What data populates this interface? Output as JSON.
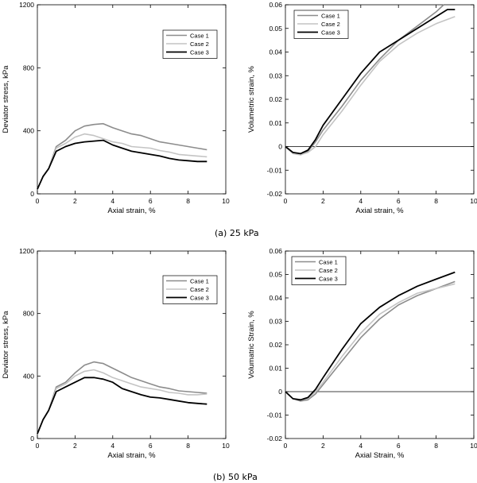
{
  "captions": {
    "a": "(a)  25 kPa",
    "b": "(b)  50 kPa"
  },
  "colors": {
    "case1": "#8c8c8c",
    "case2": "#c4c4c4",
    "case3": "#000000"
  },
  "chart_data": [
    {
      "id": "a-deviator",
      "type": "line",
      "xlabel": "Axial strain, %",
      "ylabel": "Deviator stress, kPa",
      "xlim": [
        0,
        10
      ],
      "ylim": [
        0,
        1200
      ],
      "xticks": [
        0,
        2,
        4,
        6,
        8,
        10
      ],
      "yticks": [
        0,
        400,
        800,
        1200
      ],
      "yticklabels": [
        "0",
        "400",
        "800",
        "1200"
      ],
      "legend": "top-right",
      "series": [
        {
          "name": "Case 1",
          "points": [
            [
              0,
              30
            ],
            [
              0.3,
              110
            ],
            [
              0.6,
              160
            ],
            [
              1.0,
              300
            ],
            [
              1.5,
              340
            ],
            [
              2.0,
              400
            ],
            [
              2.5,
              430
            ],
            [
              3.0,
              440
            ],
            [
              3.5,
              445
            ],
            [
              4.0,
              420
            ],
            [
              4.5,
              400
            ],
            [
              5.0,
              380
            ],
            [
              5.5,
              370
            ],
            [
              6.0,
              350
            ],
            [
              6.5,
              330
            ],
            [
              7.0,
              320
            ],
            [
              7.5,
              310
            ],
            [
              8.0,
              300
            ],
            [
              8.5,
              290
            ],
            [
              9.0,
              280
            ]
          ]
        },
        {
          "name": "Case 2",
          "points": [
            [
              0,
              30
            ],
            [
              0.3,
              110
            ],
            [
              0.6,
              160
            ],
            [
              1.0,
              290
            ],
            [
              1.5,
              320
            ],
            [
              2.0,
              360
            ],
            [
              2.5,
              380
            ],
            [
              3.0,
              370
            ],
            [
              3.5,
              350
            ],
            [
              4.0,
              330
            ],
            [
              4.5,
              320
            ],
            [
              5.0,
              300
            ],
            [
              5.5,
              295
            ],
            [
              6.0,
              290
            ],
            [
              6.5,
              275
            ],
            [
              7.0,
              265
            ],
            [
              7.5,
              250
            ],
            [
              8.0,
              245
            ],
            [
              8.5,
              240
            ],
            [
              9.0,
              235
            ]
          ]
        },
        {
          "name": "Case 3",
          "points": [
            [
              0,
              30
            ],
            [
              0.3,
              110
            ],
            [
              0.6,
              160
            ],
            [
              1.0,
              270
            ],
            [
              1.5,
              300
            ],
            [
              2.0,
              320
            ],
            [
              2.5,
              330
            ],
            [
              3.0,
              335
            ],
            [
              3.5,
              340
            ],
            [
              4.0,
              310
            ],
            [
              4.5,
              290
            ],
            [
              5.0,
              270
            ],
            [
              5.5,
              260
            ],
            [
              6.0,
              250
            ],
            [
              6.5,
              240
            ],
            [
              7.0,
              225
            ],
            [
              7.5,
              215
            ],
            [
              8.0,
              210
            ],
            [
              8.5,
              205
            ],
            [
              9.0,
              205
            ]
          ]
        }
      ]
    },
    {
      "id": "a-volumetric",
      "type": "line",
      "xlabel": "Axial strain, %",
      "ylabel": "Volumetric strain, %",
      "xlim": [
        0,
        10
      ],
      "ylim": [
        -0.02,
        0.06
      ],
      "xticks": [
        0,
        2,
        4,
        6,
        8,
        10
      ],
      "yticks": [
        -0.02,
        -0.01,
        0,
        0.01,
        0.02,
        0.03,
        0.04,
        0.05,
        0.06
      ],
      "yticklabels": [
        "-0.02",
        "-0.01",
        "0",
        "0.01",
        "0.02",
        "0.03",
        "0.04",
        "0.05",
        "0.06"
      ],
      "legend": "top-left",
      "zero_line": true,
      "series": [
        {
          "name": "Case 1",
          "points": [
            [
              0,
              0
            ],
            [
              0.4,
              -0.0025
            ],
            [
              0.8,
              -0.0035
            ],
            [
              1.2,
              -0.002
            ],
            [
              1.6,
              0.002
            ],
            [
              2.0,
              0.007
            ],
            [
              3.0,
              0.017
            ],
            [
              4.0,
              0.028
            ],
            [
              5.0,
              0.037
            ],
            [
              6.0,
              0.045
            ],
            [
              7.0,
              0.051
            ],
            [
              8.0,
              0.057
            ],
            [
              8.4,
              0.06
            ]
          ]
        },
        {
          "name": "Case 2",
          "points": [
            [
              0,
              0
            ],
            [
              0.4,
              -0.003
            ],
            [
              0.8,
              -0.0035
            ],
            [
              1.2,
              -0.0025
            ],
            [
              1.6,
              0.0
            ],
            [
              2.0,
              0.005
            ],
            [
              3.0,
              0.015
            ],
            [
              4.0,
              0.026
            ],
            [
              5.0,
              0.036
            ],
            [
              6.0,
              0.043
            ],
            [
              7.0,
              0.048
            ],
            [
              8.0,
              0.052
            ],
            [
              9.0,
              0.055
            ]
          ]
        },
        {
          "name": "Case 3",
          "points": [
            [
              0,
              0
            ],
            [
              0.4,
              -0.0025
            ],
            [
              0.8,
              -0.003
            ],
            [
              1.2,
              -0.0015
            ],
            [
              1.6,
              0.003
            ],
            [
              2.0,
              0.009
            ],
            [
              3.0,
              0.02
            ],
            [
              4.0,
              0.031
            ],
            [
              5.0,
              0.04
            ],
            [
              6.0,
              0.045
            ],
            [
              7.0,
              0.05
            ],
            [
              8.0,
              0.055
            ],
            [
              8.6,
              0.058
            ],
            [
              9.0,
              0.058
            ]
          ]
        }
      ]
    },
    {
      "id": "b-deviator",
      "type": "line",
      "xlabel": "Axial strain, %",
      "ylabel": "Deviator stress, kPa",
      "xlim": [
        0,
        10
      ],
      "ylim": [
        0,
        1200
      ],
      "xticks": [
        0,
        2,
        4,
        6,
        8,
        10
      ],
      "yticks": [
        0,
        400,
        800,
        1200
      ],
      "yticklabels": [
        "0",
        "400",
        "800",
        "1200"
      ],
      "legend": "top-right",
      "series": [
        {
          "name": "Case 1",
          "points": [
            [
              0,
              30
            ],
            [
              0.3,
              120
            ],
            [
              0.6,
              180
            ],
            [
              1.0,
              330
            ],
            [
              1.5,
              360
            ],
            [
              2.0,
              420
            ],
            [
              2.5,
              470
            ],
            [
              3.0,
              490
            ],
            [
              3.5,
              480
            ],
            [
              4.0,
              450
            ],
            [
              4.5,
              420
            ],
            [
              5.0,
              390
            ],
            [
              5.5,
              370
            ],
            [
              6.0,
              350
            ],
            [
              6.5,
              330
            ],
            [
              7.0,
              320
            ],
            [
              7.5,
              305
            ],
            [
              8.0,
              300
            ],
            [
              8.5,
              295
            ],
            [
              9.0,
              290
            ]
          ]
        },
        {
          "name": "Case 2",
          "points": [
            [
              0,
              30
            ],
            [
              0.3,
              120
            ],
            [
              0.6,
              180
            ],
            [
              1.0,
              320
            ],
            [
              1.5,
              350
            ],
            [
              2.0,
              400
            ],
            [
              2.5,
              430
            ],
            [
              3.0,
              440
            ],
            [
              3.5,
              420
            ],
            [
              4.0,
              390
            ],
            [
              4.5,
              370
            ],
            [
              5.0,
              350
            ],
            [
              5.5,
              330
            ],
            [
              6.0,
              320
            ],
            [
              6.5,
              310
            ],
            [
              7.0,
              295
            ],
            [
              7.5,
              290
            ],
            [
              8.0,
              280
            ],
            [
              8.5,
              280
            ],
            [
              9.0,
              285
            ]
          ]
        },
        {
          "name": "Case 3",
          "points": [
            [
              0,
              30
            ],
            [
              0.3,
              120
            ],
            [
              0.6,
              180
            ],
            [
              1.0,
              300
            ],
            [
              1.5,
              330
            ],
            [
              2.0,
              360
            ],
            [
              2.5,
              390
            ],
            [
              3.0,
              390
            ],
            [
              3.5,
              380
            ],
            [
              4.0,
              360
            ],
            [
              4.5,
              320
            ],
            [
              5.0,
              300
            ],
            [
              5.5,
              280
            ],
            [
              6.0,
              265
            ],
            [
              6.5,
              260
            ],
            [
              7.0,
              250
            ],
            [
              7.5,
              240
            ],
            [
              8.0,
              230
            ],
            [
              8.5,
              225
            ],
            [
              9.0,
              220
            ]
          ]
        }
      ]
    },
    {
      "id": "b-volumetric",
      "type": "line",
      "xlabel": "Axial Strain, %",
      "ylabel": "Volumatric Strain, %",
      "xlim": [
        0,
        10
      ],
      "ylim": [
        -0.02,
        0.06
      ],
      "xticks": [
        0,
        2,
        4,
        6,
        8,
        10
      ],
      "yticks": [
        -0.02,
        -0.01,
        0,
        0.01,
        0.02,
        0.03,
        0.04,
        0.05,
        0.06
      ],
      "yticklabels": [
        "-0.02",
        "-0.01",
        "0",
        "0.01",
        "0.02",
        "0.03",
        "0.04",
        "0.05",
        "0.06"
      ],
      "legend": "top-left",
      "zero_line": true,
      "series": [
        {
          "name": "Case 1",
          "points": [
            [
              0,
              0
            ],
            [
              0.4,
              -0.003
            ],
            [
              0.8,
              -0.004
            ],
            [
              1.2,
              -0.0035
            ],
            [
              1.6,
              -0.001
            ],
            [
              2.0,
              0.003
            ],
            [
              3.0,
              0.013
            ],
            [
              4.0,
              0.023
            ],
            [
              5.0,
              0.031
            ],
            [
              6.0,
              0.037
            ],
            [
              7.0,
              0.041
            ],
            [
              8.0,
              0.044
            ],
            [
              9.0,
              0.047
            ]
          ]
        },
        {
          "name": "Case 2",
          "points": [
            [
              0,
              0
            ],
            [
              0.4,
              -0.003
            ],
            [
              0.8,
              -0.0035
            ],
            [
              1.2,
              -0.003
            ],
            [
              1.6,
              0.0
            ],
            [
              2.0,
              0.004
            ],
            [
              3.0,
              0.015
            ],
            [
              4.0,
              0.025
            ],
            [
              5.0,
              0.033
            ],
            [
              6.0,
              0.038
            ],
            [
              7.0,
              0.042
            ],
            [
              8.0,
              0.044
            ],
            [
              9.0,
              0.046
            ]
          ]
        },
        {
          "name": "Case 3",
          "points": [
            [
              0,
              0
            ],
            [
              0.4,
              -0.003
            ],
            [
              0.8,
              -0.0035
            ],
            [
              1.2,
              -0.0025
            ],
            [
              1.6,
              0.001
            ],
            [
              2.0,
              0.006
            ],
            [
              3.0,
              0.018
            ],
            [
              4.0,
              0.029
            ],
            [
              5.0,
              0.036
            ],
            [
              6.0,
              0.041
            ],
            [
              7.0,
              0.045
            ],
            [
              8.0,
              0.048
            ],
            [
              9.0,
              0.051
            ]
          ]
        }
      ]
    }
  ]
}
